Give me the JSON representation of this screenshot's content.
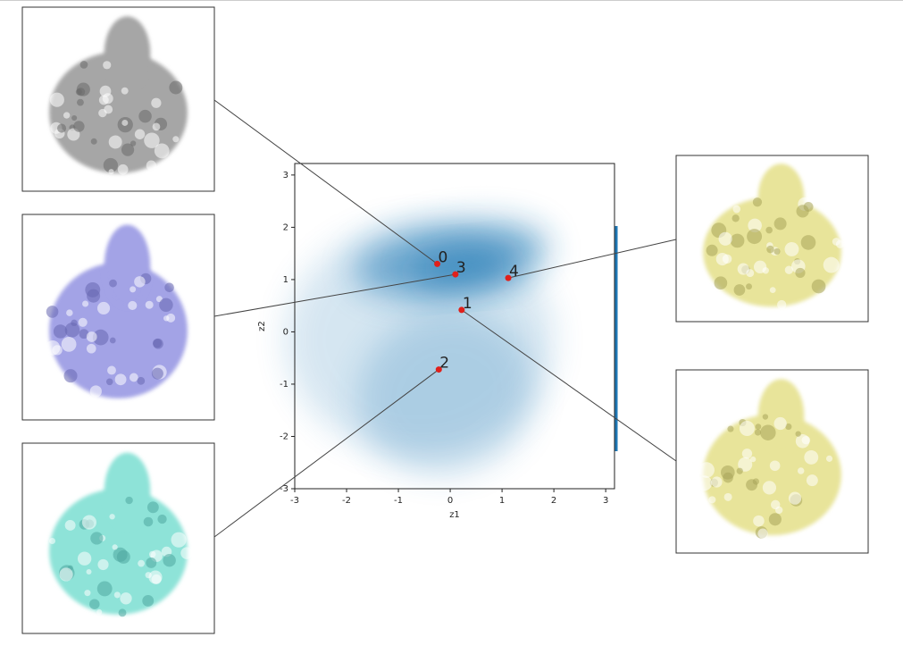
{
  "chart_data": {
    "type": "scatter",
    "x_label": "z1",
    "y_label": "z2",
    "x": [
      -0.25,
      0.22,
      -0.22,
      0.1,
      1.12
    ],
    "y": [
      1.3,
      0.42,
      -0.72,
      1.1,
      1.03
    ],
    "point_labels": [
      "0",
      "1",
      "2",
      "3",
      "4"
    ],
    "color": "#e0201b",
    "xlim": [
      -3,
      3.17
    ],
    "ylim": [
      -3,
      3.22
    ],
    "xticks": [
      -3,
      -2,
      -1,
      0,
      1,
      2,
      3
    ],
    "yticks": [
      -3,
      -2,
      -1,
      0,
      1,
      2,
      3
    ]
  }
}
